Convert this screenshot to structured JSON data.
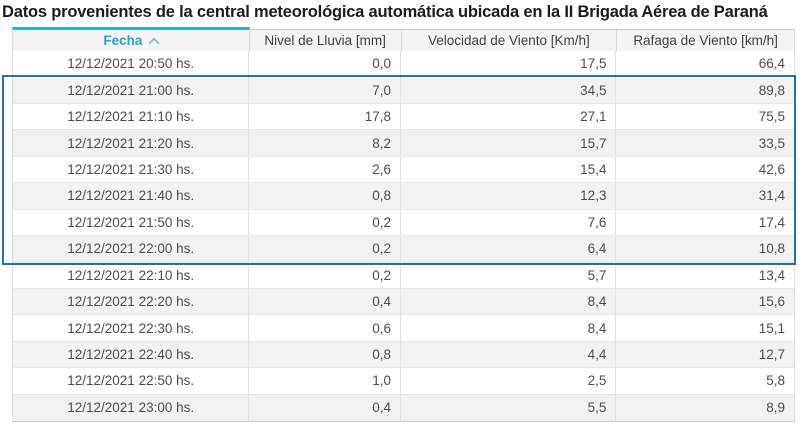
{
  "title": "Datos provenientes de la central meteorológica automática ubicada en la II Brigada Aérea de Paraná",
  "colors": {
    "accent_blue": "#29a9e1",
    "sorted_header_text": "#2d9fd4",
    "selection_border": "#2e6f96",
    "stripe_row": "#f2f2f2"
  },
  "table": {
    "columns": [
      {
        "label": "Fecha",
        "sorted": "ascending",
        "icon": "caret-up"
      },
      {
        "label": "Nivel de Lluvia [mm]"
      },
      {
        "label": "Velocidad de Viento [Km/h]"
      },
      {
        "label": "Rafaga de Viento [km/h]"
      }
    ],
    "rows": [
      {
        "fecha": "12/12/2021 20:50 hs.",
        "lluvia": "0,0",
        "viento": "17,5",
        "rafaga": "66,4"
      },
      {
        "fecha": "12/12/2021 21:00 hs.",
        "lluvia": "7,0",
        "viento": "34,5",
        "rafaga": "89,8"
      },
      {
        "fecha": "12/12/2021 21:10 hs.",
        "lluvia": "17,8",
        "viento": "27,1",
        "rafaga": "75,5"
      },
      {
        "fecha": "12/12/2021 21:20 hs.",
        "lluvia": "8,2",
        "viento": "15,7",
        "rafaga": "33,5"
      },
      {
        "fecha": "12/12/2021 21:30 hs.",
        "lluvia": "2,6",
        "viento": "15,4",
        "rafaga": "42,6"
      },
      {
        "fecha": "12/12/2021 21:40 hs.",
        "lluvia": "0,8",
        "viento": "12,3",
        "rafaga": "31,4"
      },
      {
        "fecha": "12/12/2021 21:50 hs.",
        "lluvia": "0,2",
        "viento": "7,6",
        "rafaga": "17,4"
      },
      {
        "fecha": "12/12/2021 22:00 hs.",
        "lluvia": "0,2",
        "viento": "6,4",
        "rafaga": "10,8"
      },
      {
        "fecha": "12/12/2021 22:10 hs.",
        "lluvia": "0,2",
        "viento": "5,7",
        "rafaga": "13,4"
      },
      {
        "fecha": "12/12/2021 22:20 hs.",
        "lluvia": "0,4",
        "viento": "8,4",
        "rafaga": "15,6"
      },
      {
        "fecha": "12/12/2021 22:30 hs.",
        "lluvia": "0,6",
        "viento": "8,4",
        "rafaga": "15,1"
      },
      {
        "fecha": "12/12/2021 22:40 hs.",
        "lluvia": "0,8",
        "viento": "4,4",
        "rafaga": "12,7"
      },
      {
        "fecha": "12/12/2021 22:50 hs.",
        "lluvia": "1,0",
        "viento": "2,5",
        "rafaga": "5,8"
      },
      {
        "fecha": "12/12/2021 23:00 hs.",
        "lluvia": "0,4",
        "viento": "5,5",
        "rafaga": "8,9"
      }
    ],
    "selection": {
      "first_row": "12/12/2021 21:00 hs.",
      "last_row": "12/12/2021 22:00 hs."
    }
  }
}
